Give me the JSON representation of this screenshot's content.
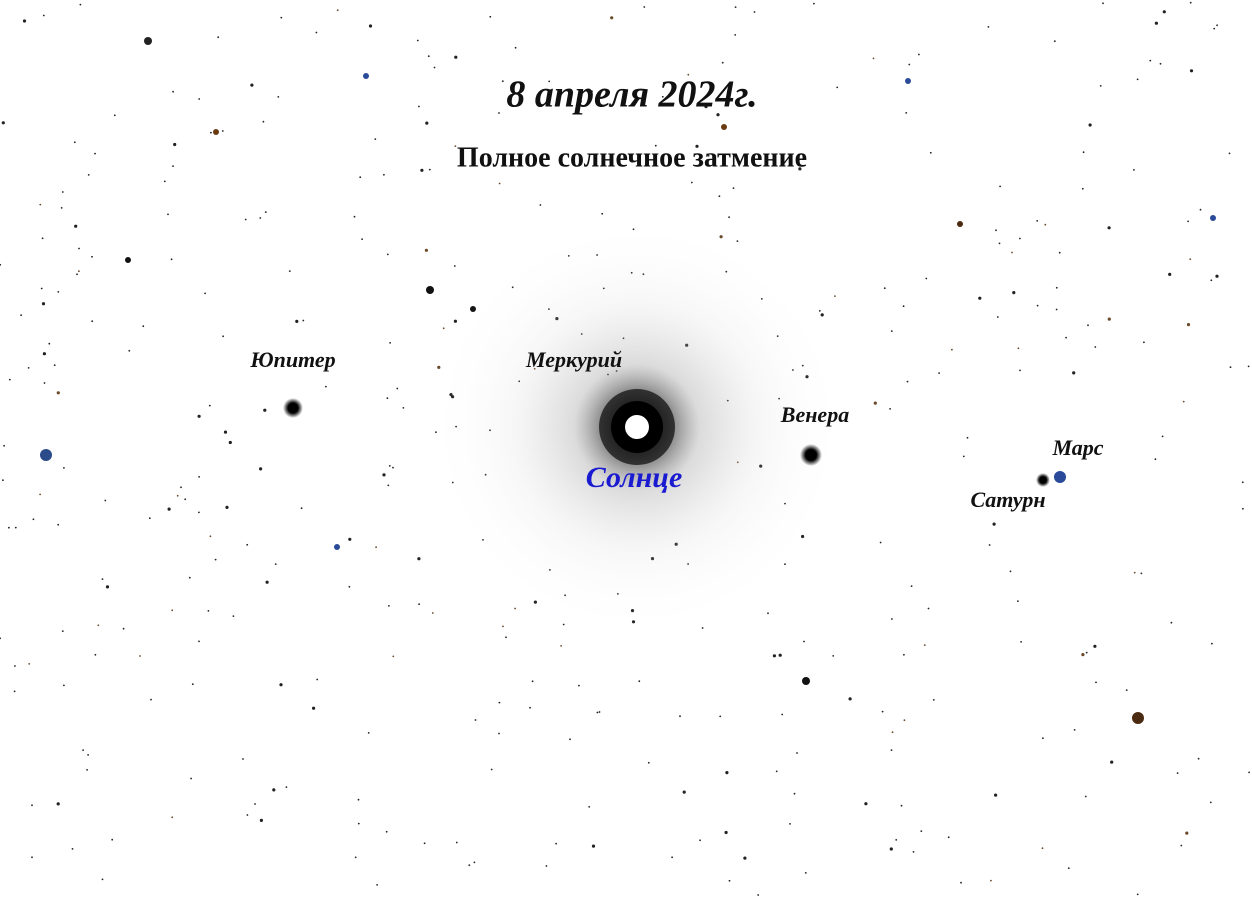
{
  "header": {
    "title": "8 апреля 2024г.",
    "subtitle": "Полное солнечное затмение"
  },
  "sun": {
    "label": "Солнце"
  },
  "bodies": [
    {
      "label": "Юпитер"
    },
    {
      "label": "Меркурий"
    },
    {
      "label": "Венера"
    },
    {
      "label": "Марс"
    },
    {
      "label": "Сатурн"
    }
  ]
}
